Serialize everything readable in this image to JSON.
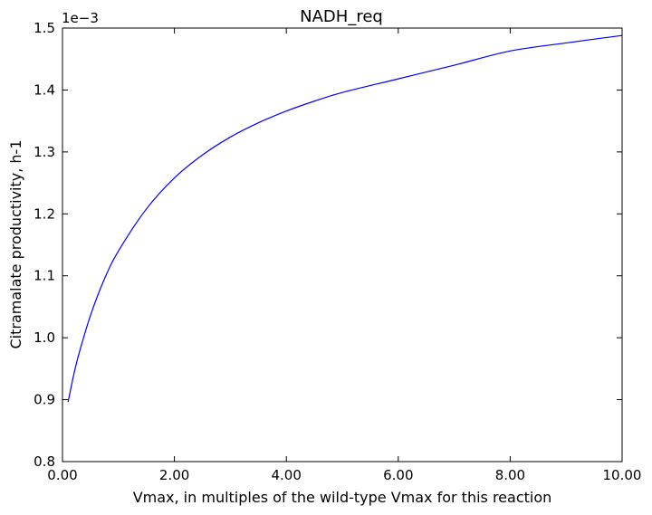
{
  "chart_data": {
    "type": "line",
    "title": "NADH_req",
    "xlabel": "Vmax, in multiples of the wild-type Vmax for this reaction",
    "ylabel": "Citramalate productivity, h-1",
    "y_offset_label": "1e−3",
    "xlim": [
      0,
      10
    ],
    "ylim": [
      0.8,
      1.5
    ],
    "x_ticks": [
      0,
      2,
      4,
      6,
      8,
      10
    ],
    "x_tick_labels": [
      "0.00",
      "2.00",
      "4.00",
      "6.00",
      "8.00",
      "10.00"
    ],
    "y_ticks": [
      0.8,
      0.9,
      1.0,
      1.1,
      1.2,
      1.3,
      1.4,
      1.5
    ],
    "y_tick_labels": [
      "0.8",
      "0.9",
      "1.0",
      "1.1",
      "1.2",
      "1.3",
      "1.4",
      "1.5"
    ],
    "grid": false,
    "series": [
      {
        "color": "#0000ff",
        "x": [
          0.1,
          0.2,
          0.3,
          0.5,
          0.75,
          1.0,
          1.5,
          2.0,
          2.5,
          3.0,
          3.5,
          4.0,
          4.5,
          5.0,
          6.0,
          7.0,
          8.0,
          9.0,
          10.0
        ],
        "y": [
          0.896,
          0.94,
          0.976,
          1.036,
          1.095,
          1.14,
          1.208,
          1.258,
          1.295,
          1.324,
          1.347,
          1.366,
          1.382,
          1.396,
          1.418,
          1.44,
          1.463,
          1.476,
          1.488
        ]
      }
    ]
  }
}
